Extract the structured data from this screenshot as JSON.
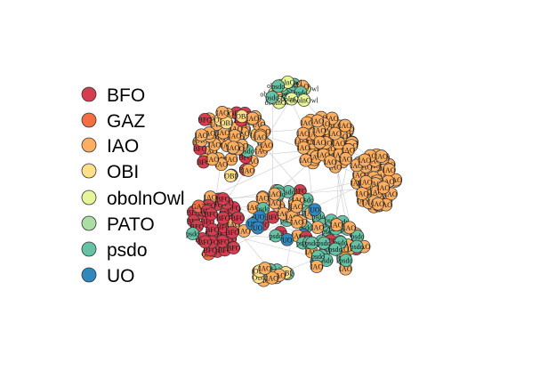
{
  "legend": {
    "items": [
      {
        "label": "BFO",
        "color": "#d53e4f"
      },
      {
        "label": "GAZ",
        "color": "#f46d43"
      },
      {
        "label": "IAO",
        "color": "#fdae61"
      },
      {
        "label": "OBI",
        "color": "#fee08b"
      },
      {
        "label": "obolnOwl",
        "color": "#e6f598"
      },
      {
        "label": "PATO",
        "color": "#abdda4"
      },
      {
        "label": "psdo",
        "color": "#66c2a5"
      },
      {
        "label": "UO",
        "color": "#3288bd"
      }
    ]
  },
  "node_labels": {
    "BFO": "BFO",
    "GAZ": "GAZ",
    "IAO": "IAO",
    "OBI": "OBI",
    "obolnOwl": "obolnOwl",
    "PATO": "PATO",
    "psdo": "psdo",
    "UO": "UO"
  },
  "edge_color": "#cccccc",
  "node_stroke": "#333333"
}
